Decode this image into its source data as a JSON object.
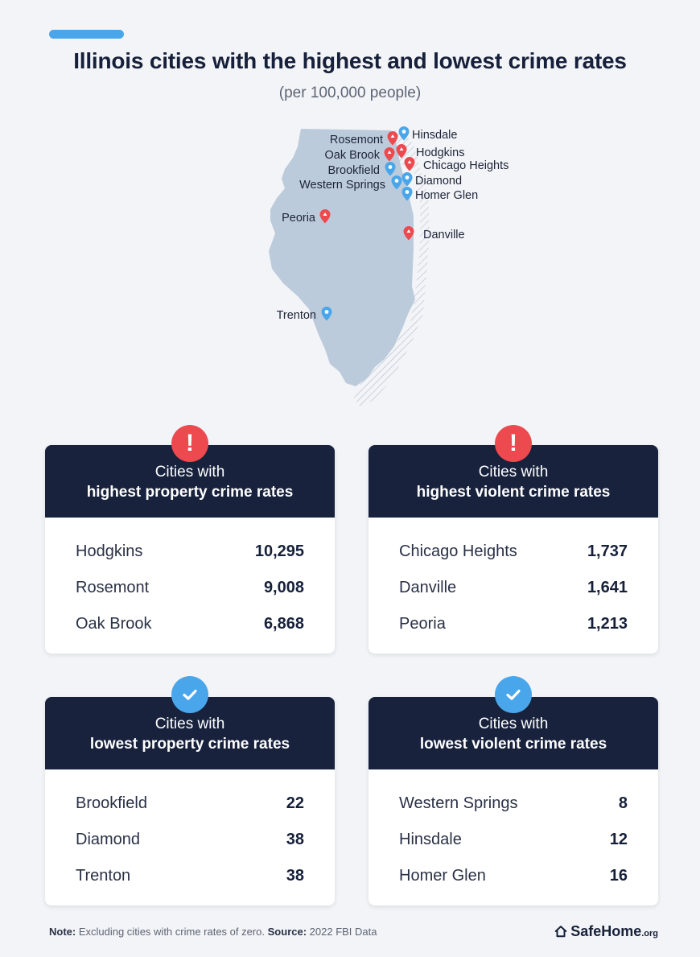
{
  "title": "Illinois cities with the highest and lowest crime rates",
  "subtitle": "(per 100,000 people)",
  "colors": {
    "accent_blue": "#4aa6ea",
    "alert_red": "#ec4a4f",
    "navy": "#18223d",
    "map_fill": "#bccbdb"
  },
  "map": {
    "cities": [
      {
        "name": "Rosemont",
        "type": "high"
      },
      {
        "name": "Hinsdale",
        "type": "low"
      },
      {
        "name": "Oak Brook",
        "type": "high"
      },
      {
        "name": "Hodgkins",
        "type": "high"
      },
      {
        "name": "Brookfield",
        "type": "low"
      },
      {
        "name": "Chicago Heights",
        "type": "high"
      },
      {
        "name": "Western Springs",
        "type": "low"
      },
      {
        "name": "Diamond",
        "type": "low"
      },
      {
        "name": "Homer Glen",
        "type": "low"
      },
      {
        "name": "Peoria",
        "type": "high"
      },
      {
        "name": "Danville",
        "type": "high"
      },
      {
        "name": "Trenton",
        "type": "low"
      }
    ]
  },
  "cards": [
    {
      "line1": "Cities with",
      "line2": "highest property crime rates",
      "badge": "!",
      "rows": [
        {
          "city": "Hodgkins",
          "value": "10,295"
        },
        {
          "city": "Rosemont",
          "value": "9,008"
        },
        {
          "city": "Oak Brook",
          "value": "6,868"
        }
      ]
    },
    {
      "line1": "Cities with",
      "line2": "highest violent crime rates",
      "badge": "!",
      "rows": [
        {
          "city": "Chicago Heights",
          "value": "1,737"
        },
        {
          "city": "Danville",
          "value": "1,641"
        },
        {
          "city": "Peoria",
          "value": "1,213"
        }
      ]
    },
    {
      "line1": "Cities with",
      "line2": "lowest property crime rates",
      "badge": "check-icon",
      "rows": [
        {
          "city": "Brookfield",
          "value": "22"
        },
        {
          "city": "Diamond",
          "value": "38"
        },
        {
          "city": "Trenton",
          "value": "38"
        }
      ]
    },
    {
      "line1": "Cities with",
      "line2": "lowest violent crime rates",
      "badge": "check-icon",
      "rows": [
        {
          "city": "Western Springs",
          "value": "8"
        },
        {
          "city": "Hinsdale",
          "value": "12"
        },
        {
          "city": "Homer Glen",
          "value": "16"
        }
      ]
    }
  ],
  "footer": {
    "note_label": "Note:",
    "note_text": " Excluding cities with crime rates of zero. ",
    "source_label": "Source:",
    "source_text": " 2022 FBI Data",
    "brand": "SafeHome",
    "tld": ".org"
  }
}
